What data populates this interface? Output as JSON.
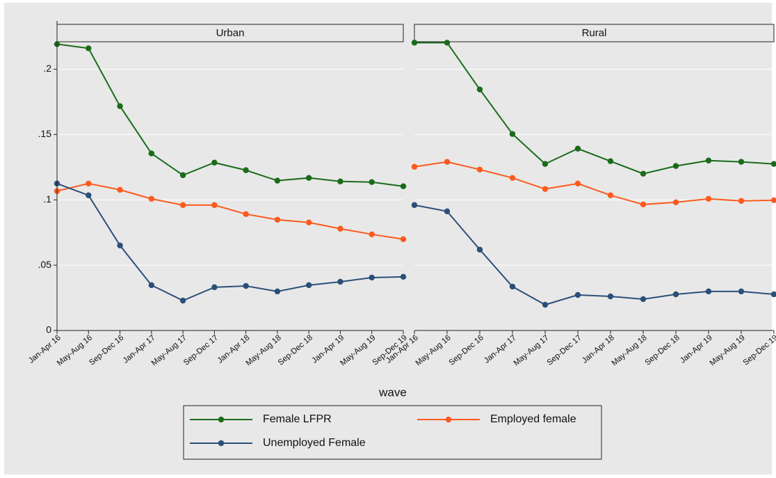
{
  "chart_data": [
    {
      "type": "line",
      "title": "Urban",
      "x_label": "wave",
      "categories": [
        "Jan-Apr 16",
        "May-Aug 16",
        "Sep-Dec 16",
        "Jan-Apr 17",
        "May-Aug 17",
        "Sep-Dec 17",
        "Jan-Apr 18",
        "May-Aug 18",
        "Sep-Dec 18",
        "Jan-Apr 19",
        "May-Aug 19",
        "Sep-Dec 19"
      ],
      "ylim": [
        0,
        0.237
      ],
      "yticks": [
        0,
        {
          "value": 0.05,
          "label": ".05"
        },
        {
          "value": 0.1,
          "label": ".1"
        },
        {
          "value": 0.15,
          "label": ".15"
        },
        {
          "value": 0.2,
          "label": ".2"
        }
      ],
      "grid": true,
      "series": [
        {
          "name": "Female LFPR",
          "color": "#1a6b1a",
          "values": [
            0.2192,
            0.216,
            0.1717,
            0.1355,
            0.1189,
            0.1285,
            0.1227,
            0.1147,
            0.1168,
            0.1141,
            0.1136,
            0.1104
          ]
        },
        {
          "name": "Employed female",
          "color": "#fc5a1e",
          "values": [
            0.1067,
            0.1125,
            0.1077,
            0.1008,
            0.096,
            0.096,
            0.0891,
            0.0848,
            0.0827,
            0.0779,
            0.0736,
            0.0699
          ]
        },
        {
          "name": "Unemployed Female",
          "color": "#2a4f78",
          "values": [
            0.1125,
            0.1035,
            0.0651,
            0.0347,
            0.0229,
            0.0331,
            0.0341,
            0.0299,
            0.0347,
            0.0373,
            0.0405,
            0.0411
          ]
        }
      ]
    },
    {
      "type": "line",
      "title": "Rural",
      "categories": [
        "Jan-Apr 16",
        "May-Aug 16",
        "Sep-Dec 16",
        "Jan-Apr 17",
        "May-Aug 17",
        "Sep-Dec 17",
        "Jan-Apr 18",
        "May-Aug 18",
        "Sep-Dec 18",
        "Jan-Apr 19",
        "May-Aug 19",
        "Sep-Dec 19"
      ],
      "series": [
        {
          "name": "Female LFPR",
          "color": "#1a6b1a",
          "values": [
            0.2203,
            0.2203,
            0.1845,
            0.1504,
            0.1275,
            0.1392,
            0.1296,
            0.12,
            0.1259,
            0.1301,
            0.1291,
            0.1275
          ]
        },
        {
          "name": "Employed female",
          "color": "#fc5a1e",
          "values": [
            0.1253,
            0.1291,
            0.1232,
            0.1168,
            0.1083,
            0.1125,
            0.1035,
            0.0965,
            0.0981,
            0.1008,
            0.0992,
            0.0997
          ]
        },
        {
          "name": "Unemployed Female",
          "color": "#2a4f78",
          "values": [
            0.096,
            0.0912,
            0.0619,
            0.0336,
            0.0197,
            0.0272,
            0.0261,
            0.024,
            0.0277,
            0.0299,
            0.0299,
            0.0277
          ]
        }
      ]
    }
  ]
}
